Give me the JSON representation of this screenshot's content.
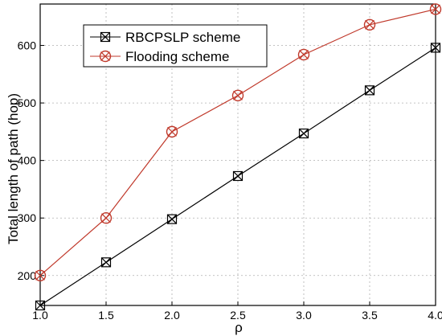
{
  "chart_data": {
    "type": "line",
    "title": "",
    "xlabel": "ρ",
    "ylabel": "Total length of path (hop)",
    "x": [
      1.0,
      1.5,
      2.0,
      2.5,
      3.0,
      3.5,
      4.0
    ],
    "x_ticks": [
      "1.0",
      "1.5",
      "2.0",
      "2.5",
      "3.0",
      "3.5",
      "4.0"
    ],
    "y_ticks": [
      "200",
      "300",
      "400",
      "500",
      "600"
    ],
    "xlim": [
      1.0,
      4.0
    ],
    "ylim": [
      148,
      672
    ],
    "grid": true,
    "legend_position": "top-left",
    "series": [
      {
        "name": "RBCPSLP scheme",
        "values": [
          148,
          223,
          298,
          373,
          447,
          522,
          596
        ],
        "color": "#000000",
        "marker": "boxed-x"
      },
      {
        "name": "Flooding scheme",
        "values": [
          200,
          300,
          450,
          513,
          584,
          636,
          663
        ],
        "color": "#c0392b",
        "marker": "circled-x"
      }
    ]
  }
}
